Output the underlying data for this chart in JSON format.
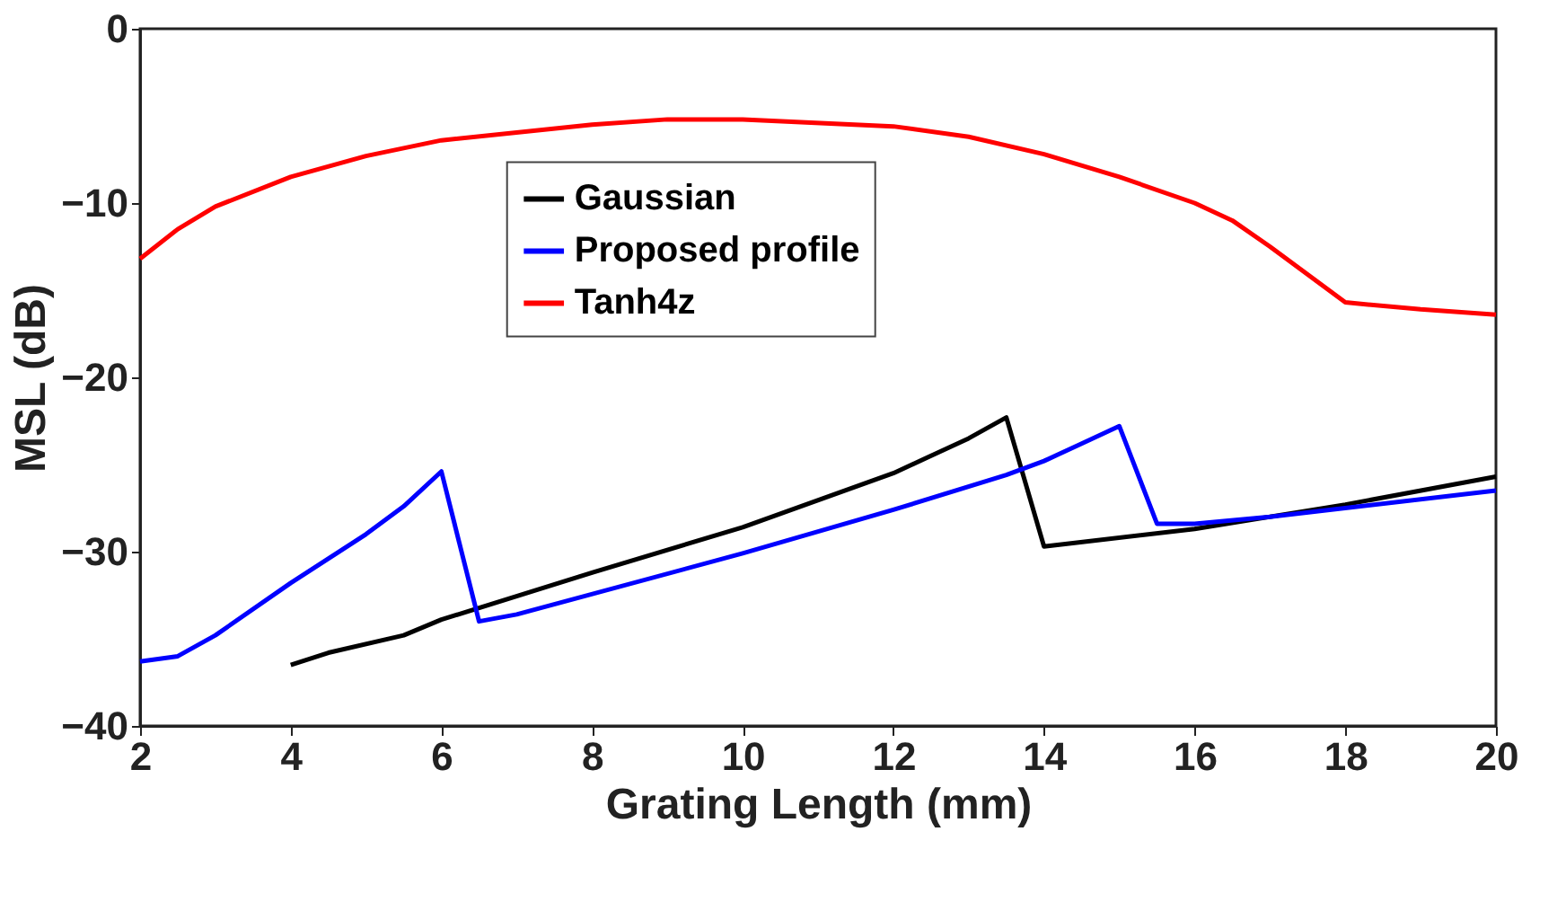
{
  "chart_data": {
    "type": "line",
    "xlabel": "Grating Length (mm)",
    "ylabel": "MSL (dB)",
    "xlim": [
      2,
      20
    ],
    "xticks": [
      2,
      4,
      6,
      8,
      10,
      12,
      14,
      16,
      18,
      20
    ],
    "ylim": [
      -40,
      0
    ],
    "yticks": [
      -40,
      -30,
      -20,
      -10,
      0
    ],
    "grid": false,
    "legend": "top",
    "marker": "none",
    "line_style": "solid",
    "series": [
      {
        "name": "Gaussian",
        "color": "#000000",
        "x": [
          4,
          4.5,
          5.5,
          6,
          8,
          10,
          12,
          13,
          13.5,
          14,
          16,
          18,
          20
        ],
        "values": [
          -36.5,
          -35.8,
          -34.8,
          -33.9,
          -31.2,
          -28.6,
          -25.5,
          -23.5,
          -22.3,
          -29.7,
          -28.7,
          -27.3,
          -25.7
        ]
      },
      {
        "name": "Proposed profile",
        "color": "#0000ff",
        "x": [
          2,
          2.5,
          3,
          4,
          5,
          5.5,
          6,
          6.5,
          7,
          10,
          12,
          13.5,
          14,
          14.5,
          15,
          15.5,
          16,
          17,
          20
        ],
        "values": [
          -36.3,
          -36.0,
          -34.8,
          -31.8,
          -29.0,
          -27.4,
          -25.4,
          -34.0,
          -33.6,
          -30.1,
          -27.6,
          -25.6,
          -24.8,
          -23.8,
          -22.8,
          -28.4,
          -28.4,
          -28.0,
          -26.5
        ]
      },
      {
        "name": "Tanh4z",
        "color": "#ff0000",
        "x": [
          2,
          2.5,
          3,
          4,
          5,
          6,
          8,
          9,
          10,
          12,
          13,
          14,
          15,
          16,
          16.5,
          17,
          18,
          19,
          20
        ],
        "values": [
          -13.2,
          -11.5,
          -10.2,
          -8.5,
          -7.3,
          -6.4,
          -5.5,
          -5.2,
          -5.2,
          -5.6,
          -6.2,
          -7.2,
          -8.5,
          -10,
          -11,
          -12.5,
          -15.7,
          -16.1,
          -16.4
        ]
      }
    ]
  }
}
